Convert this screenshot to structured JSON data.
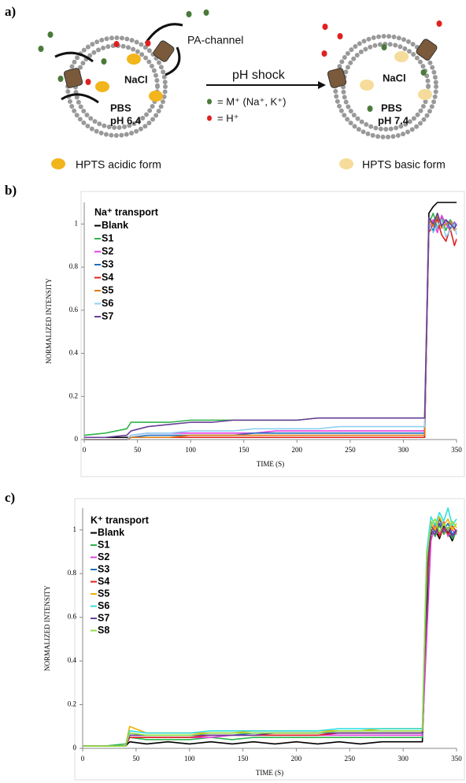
{
  "panel_a": {
    "label": "a)",
    "channel_label": "PA-channel",
    "left_salt": "NaCl",
    "left_buffer": "PBS",
    "left_ph": "pH 6.4",
    "left_caption": "HPTS acidic form",
    "arrow_label": "pH shock",
    "key_cation": "= M⁺ (Na⁺, K⁺)",
    "key_proton": "= H⁺",
    "right_salt": "NaCl",
    "right_buffer": "PBS",
    "right_ph": "pH 7.4",
    "right_caption": "HPTS basic form"
  },
  "chart_data": [
    {
      "type": "line",
      "panel_label": "b)",
      "legend_title": "Na⁺ transport",
      "xlabel": "TIME (S)",
      "ylabel": "NORMALIZED INTENSITY",
      "xlim": [
        0,
        350
      ],
      "xticks": [
        0,
        50,
        100,
        150,
        200,
        250,
        300,
        350
      ],
      "ylim": [
        0,
        1.1
      ],
      "yticks": [
        0,
        0.2,
        0.4,
        0.6,
        0.8,
        1
      ],
      "x": [
        0,
        20,
        40,
        44,
        60,
        80,
        100,
        120,
        140,
        160,
        180,
        200,
        220,
        240,
        260,
        280,
        300,
        320,
        324,
        328,
        332,
        336,
        340,
        344,
        348,
        350
      ],
      "series": [
        {
          "name": "Blank",
          "color": "#000000",
          "values": [
            0.01,
            0.01,
            0.01,
            0.01,
            0.01,
            0.01,
            0.01,
            0.01,
            0.01,
            0.01,
            0.01,
            0.01,
            0.01,
            0.01,
            0.01,
            0.01,
            0.01,
            0.01,
            1.05,
            1.08,
            1.1,
            1.1,
            1.1,
            1.1,
            1.1,
            1.1
          ]
        },
        {
          "name": "S1",
          "color": "#2db34a",
          "values": [
            0.02,
            0.03,
            0.05,
            0.08,
            0.08,
            0.08,
            0.09,
            0.09,
            0.09,
            0.09,
            0.09,
            0.09,
            0.1,
            0.1,
            0.1,
            0.1,
            0.1,
            0.1,
            1.0,
            1.05,
            0.98,
            1.03,
            0.97,
            1.02,
            0.99,
            1.0
          ]
        },
        {
          "name": "S2",
          "color": "#e040e0",
          "values": [
            0,
            0,
            0,
            0.02,
            0.03,
            0.03,
            0.03,
            0.03,
            0.03,
            0.03,
            0.04,
            0.04,
            0.04,
            0.04,
            0.04,
            0.04,
            0.04,
            0.04,
            0.98,
            1.02,
            0.96,
            1.04,
            1.0,
            0.97,
            1.01,
            0.99
          ]
        },
        {
          "name": "S3",
          "color": "#1f6fc0",
          "values": [
            0,
            0,
            0,
            0.01,
            0.02,
            0.02,
            0.02,
            0.02,
            0.02,
            0.03,
            0.03,
            0.03,
            0.03,
            0.03,
            0.03,
            0.03,
            0.03,
            0.03,
            1.0,
            0.97,
            1.03,
            0.99,
            1.02,
            0.98,
            1.0,
            1.0
          ]
        },
        {
          "name": "S4",
          "color": "#e02020",
          "values": [
            0,
            0,
            0,
            0.01,
            0.01,
            0.01,
            0.01,
            0.01,
            0.01,
            0.01,
            0.01,
            0.01,
            0.01,
            0.01,
            0.01,
            0.01,
            0.01,
            0.01,
            0.96,
            1.0,
            1.02,
            0.95,
            0.92,
            0.98,
            0.9,
            0.93
          ]
        },
        {
          "name": "S5",
          "color": "#e07a10",
          "values": [
            0,
            0,
            0,
            0.01,
            0.01,
            0.01,
            0.02,
            0.02,
            0.02,
            0.02,
            0.02,
            0.02,
            0.02,
            0.02,
            0.02,
            0.02,
            0.02,
            0.02,
            1.02,
            0.99,
            1.04,
            0.98,
            1.0,
            1.01,
            0.97,
            0.98
          ]
        },
        {
          "name": "S6",
          "color": "#8fd0f0",
          "values": [
            0,
            0,
            0,
            0.02,
            0.03,
            0.03,
            0.04,
            0.04,
            0.04,
            0.05,
            0.05,
            0.05,
            0.05,
            0.06,
            0.06,
            0.06,
            0.06,
            0.06,
            1.0,
            0.96,
            0.99,
            1.02,
            0.94,
            0.97,
            1.0,
            0.95
          ]
        },
        {
          "name": "S7",
          "color": "#6a3d9a",
          "values": [
            0.01,
            0.01,
            0.02,
            0.04,
            0.06,
            0.07,
            0.08,
            0.08,
            0.09,
            0.09,
            0.09,
            0.09,
            0.1,
            0.1,
            0.1,
            0.1,
            0.1,
            0.1,
            1.03,
            1.0,
            1.05,
            0.99,
            1.02,
            1.0,
            0.98,
            1.0
          ]
        }
      ]
    },
    {
      "type": "line",
      "panel_label": "c)",
      "legend_title": "K⁺ transport",
      "xlabel": "TIME (S)",
      "ylabel": "NORMALIZED INTENSITY",
      "xlim": [
        0,
        350
      ],
      "xticks": [
        0,
        50,
        100,
        150,
        200,
        250,
        300,
        350
      ],
      "ylim": [
        0,
        1.1
      ],
      "yticks": [
        0,
        0.2,
        0.4,
        0.6,
        0.8,
        1
      ],
      "x": [
        0,
        20,
        40,
        44,
        60,
        80,
        100,
        120,
        140,
        160,
        180,
        200,
        220,
        240,
        260,
        280,
        300,
        318,
        322,
        326,
        330,
        334,
        338,
        342,
        346,
        350
      ],
      "series": [
        {
          "name": "Blank",
          "color": "#000000",
          "values": [
            0.01,
            0.01,
            0.01,
            0.03,
            0.02,
            0.03,
            0.02,
            0.03,
            0.02,
            0.03,
            0.02,
            0.03,
            0.02,
            0.03,
            0.02,
            0.03,
            0.03,
            0.03,
            0.6,
            0.98,
            1.0,
            0.96,
            1.02,
            0.99,
            0.95,
            1.0
          ]
        },
        {
          "name": "S1",
          "color": "#2db34a",
          "values": [
            0.01,
            0.01,
            0.02,
            0.05,
            0.04,
            0.04,
            0.04,
            0.05,
            0.04,
            0.05,
            0.05,
            0.05,
            0.05,
            0.05,
            0.05,
            0.05,
            0.05,
            0.05,
            0.7,
            1.0,
            0.97,
            1.02,
            0.98,
            1.0,
            0.96,
            0.99
          ]
        },
        {
          "name": "S2",
          "color": "#e040e0",
          "values": [
            0.01,
            0.01,
            0.01,
            0.05,
            0.05,
            0.05,
            0.05,
            0.05,
            0.06,
            0.06,
            0.06,
            0.06,
            0.06,
            0.06,
            0.06,
            0.06,
            0.06,
            0.06,
            0.5,
            0.95,
            1.02,
            0.98,
            1.04,
            0.97,
            1.0,
            0.98
          ]
        },
        {
          "name": "S3",
          "color": "#1f6fc0",
          "values": [
            0.01,
            0.01,
            0.01,
            0.06,
            0.06,
            0.06,
            0.06,
            0.06,
            0.06,
            0.07,
            0.07,
            0.07,
            0.07,
            0.07,
            0.07,
            0.07,
            0.07,
            0.07,
            0.8,
            1.02,
            0.99,
            1.05,
            1.0,
            1.03,
            0.98,
            1.0
          ]
        },
        {
          "name": "S4",
          "color": "#e02020",
          "values": [
            0.01,
            0.01,
            0.01,
            0.05,
            0.05,
            0.05,
            0.05,
            0.06,
            0.06,
            0.06,
            0.06,
            0.06,
            0.06,
            0.07,
            0.07,
            0.07,
            0.07,
            0.07,
            0.75,
            0.99,
            1.03,
            0.97,
            1.01,
            0.98,
            1.02,
            0.99
          ]
        },
        {
          "name": "S5",
          "color": "#f0b000",
          "values": [
            0.01,
            0.01,
            0.01,
            0.1,
            0.07,
            0.07,
            0.07,
            0.07,
            0.07,
            0.08,
            0.08,
            0.08,
            0.08,
            0.08,
            0.08,
            0.09,
            0.09,
            0.09,
            0.85,
            1.04,
            1.0,
            1.06,
            1.02,
            1.05,
            1.0,
            1.03
          ]
        },
        {
          "name": "S6",
          "color": "#30e0e0",
          "values": [
            0.01,
            0.01,
            0.01,
            0.08,
            0.07,
            0.07,
            0.07,
            0.08,
            0.08,
            0.08,
            0.08,
            0.08,
            0.08,
            0.09,
            0.09,
            0.09,
            0.09,
            0.09,
            0.9,
            1.06,
            1.02,
            1.08,
            1.04,
            1.1,
            1.02,
            1.05
          ]
        },
        {
          "name": "S7",
          "color": "#6a3d9a",
          "values": [
            0.01,
            0.01,
            0.01,
            0.06,
            0.06,
            0.06,
            0.06,
            0.06,
            0.06,
            0.06,
            0.07,
            0.07,
            0.07,
            0.07,
            0.07,
            0.07,
            0.07,
            0.07,
            0.8,
            1.0,
            0.98,
            1.03,
            0.99,
            1.01,
            0.97,
            1.0
          ]
        },
        {
          "name": "S8",
          "color": "#90e040",
          "values": [
            0.01,
            0.01,
            0.01,
            0.07,
            0.06,
            0.06,
            0.06,
            0.07,
            0.07,
            0.07,
            0.07,
            0.07,
            0.07,
            0.08,
            0.08,
            0.08,
            0.08,
            0.08,
            0.88,
            1.02,
            1.05,
            0.99,
            1.03,
            1.0,
            1.04,
            1.01
          ]
        }
      ]
    }
  ]
}
